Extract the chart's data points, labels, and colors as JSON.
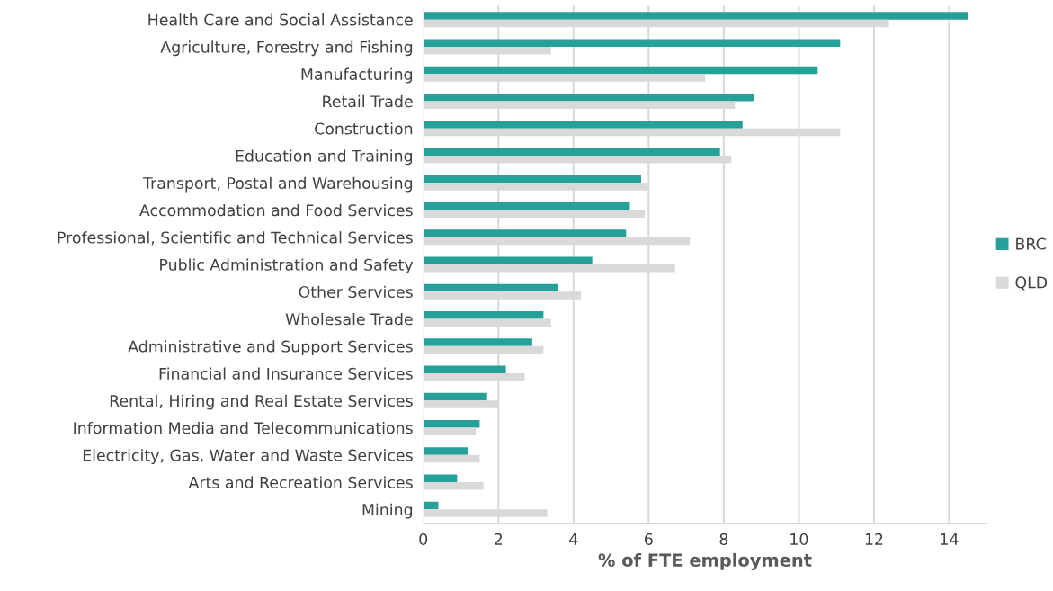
{
  "chart_data": {
    "type": "bar",
    "orientation": "horizontal",
    "xlabel": "% of FTE employment",
    "categories": [
      "Health Care and Social Assistance",
      "Agriculture, Forestry and Fishing",
      "Manufacturing",
      "Retail Trade",
      "Construction",
      "Education and Training",
      "Transport, Postal and Warehousing",
      "Accommodation and Food Services",
      "Professional, Scientific and Technical Services",
      "Public Administration and Safety",
      "Other Services",
      "Wholesale Trade",
      "Administrative and Support Services",
      "Financial and Insurance Services",
      "Rental, Hiring and Real Estate Services",
      "Information Media and Telecommunications",
      "Electricity, Gas, Water and Waste Services",
      "Arts and Recreation Services",
      "Mining"
    ],
    "series": [
      {
        "name": "BRC",
        "color": "#26a199",
        "values": [
          14.5,
          11.1,
          10.5,
          8.8,
          8.5,
          7.9,
          5.8,
          5.5,
          5.4,
          4.5,
          3.6,
          3.2,
          2.9,
          2.2,
          1.7,
          1.5,
          1.2,
          0.9,
          0.4
        ]
      },
      {
        "name": "QLD",
        "color": "#d9d9d9",
        "values": [
          12.4,
          3.4,
          7.5,
          8.3,
          11.1,
          8.2,
          6.0,
          5.9,
          7.1,
          6.7,
          4.2,
          3.4,
          3.2,
          2.7,
          2.0,
          1.4,
          1.5,
          1.6,
          3.3
        ]
      }
    ],
    "xlim": [
      0,
      15
    ],
    "xticks": [
      0,
      2,
      4,
      6,
      8,
      10,
      12,
      14
    ],
    "grid": "x",
    "legend": "right"
  }
}
